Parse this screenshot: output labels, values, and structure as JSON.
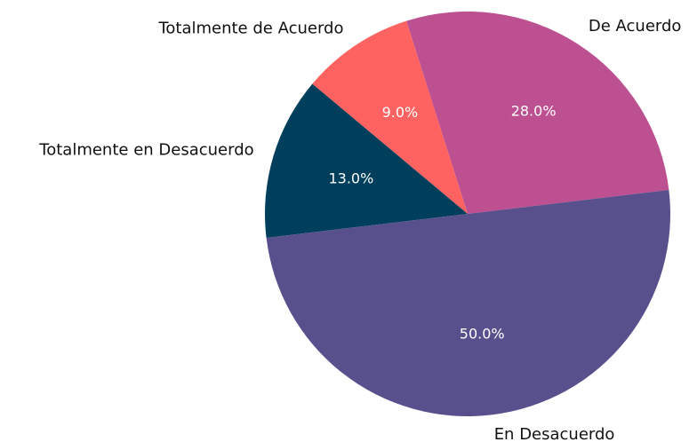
{
  "chart_data": {
    "type": "pie",
    "categories": [
      "De Acuerdo",
      "Totalmente de Acuerdo",
      "Totalmente en Desacuerdo",
      "En Desacuerdo"
    ],
    "values": [
      28,
      9,
      13,
      50
    ],
    "value_labels": [
      "28.0%",
      "9.0%",
      "13.0%",
      "50.0%"
    ],
    "colors": [
      "#bc5090",
      "#ff6361",
      "#003f5c",
      "#58508d"
    ]
  }
}
